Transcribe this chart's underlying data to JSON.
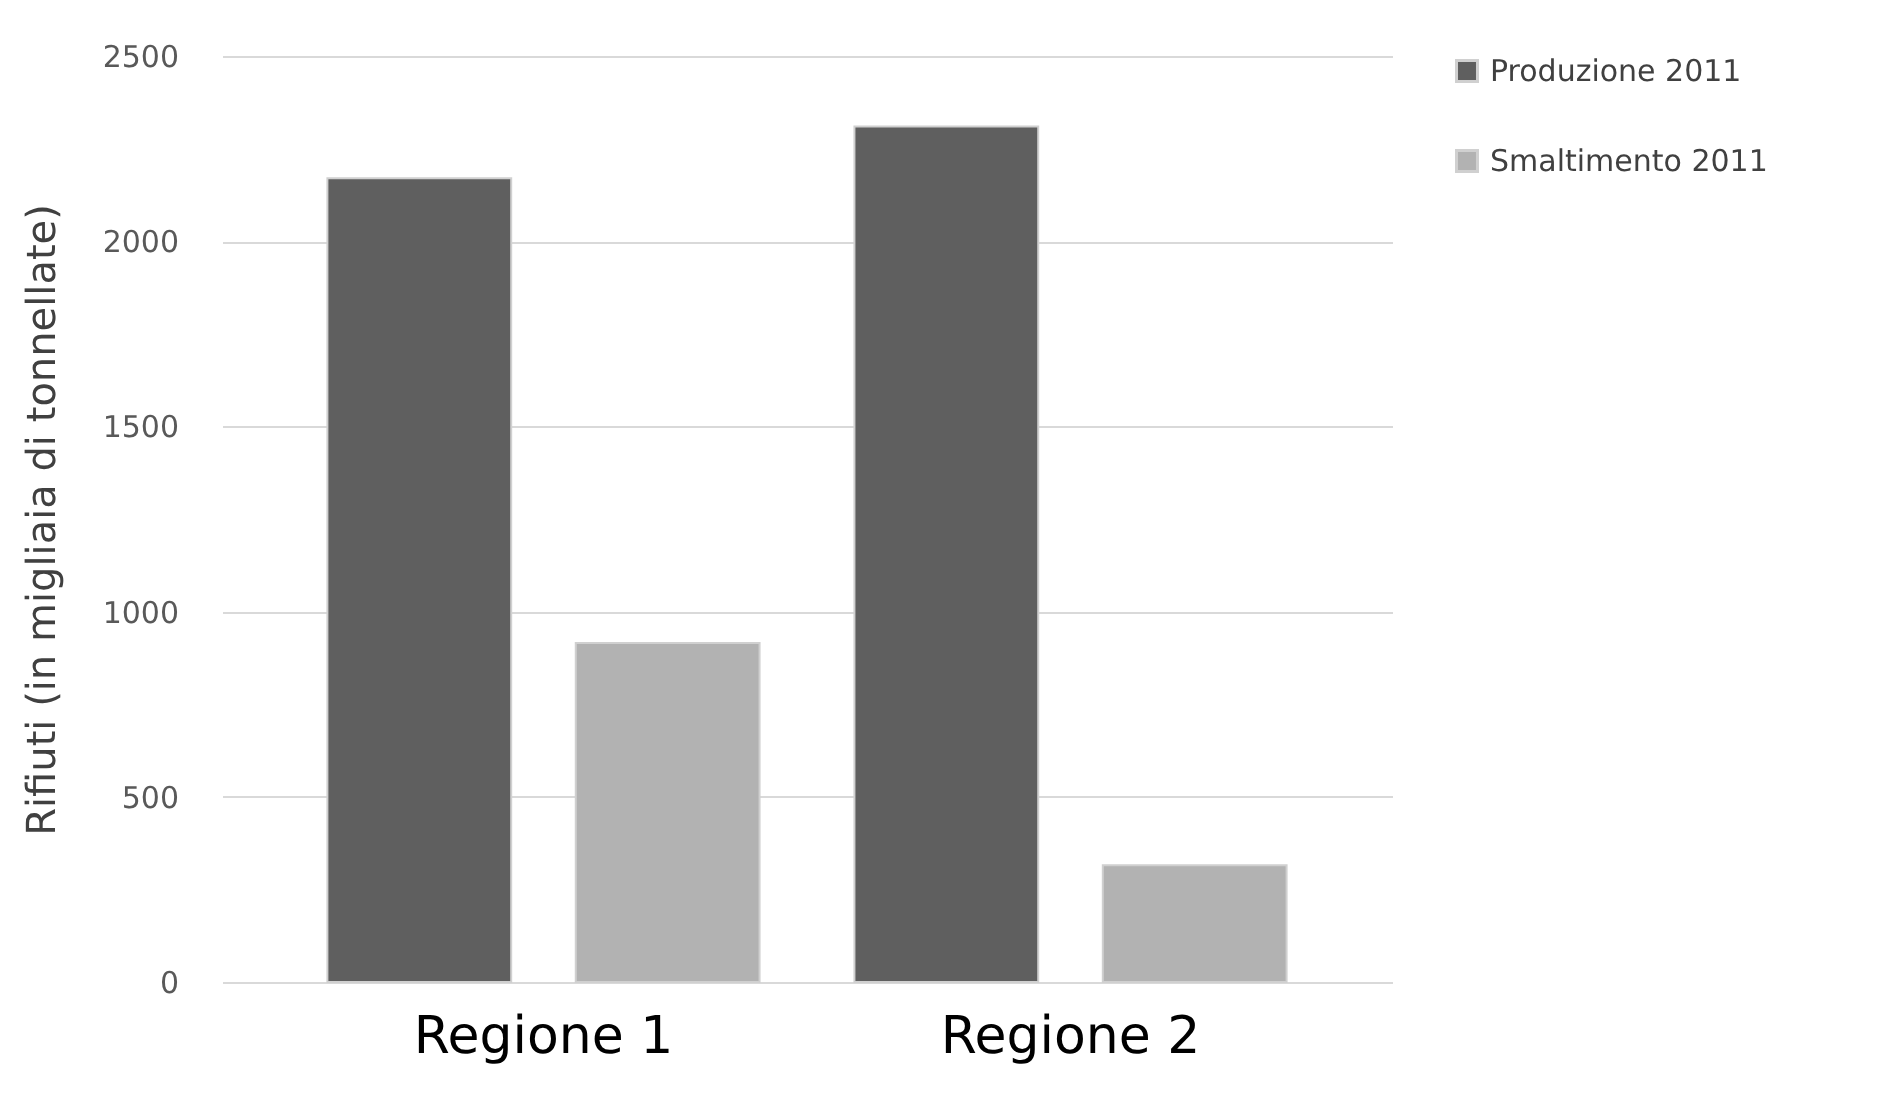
{
  "chart_data": {
    "type": "bar",
    "ylabel": "Rifiuti (in migliaia di tonnellate)",
    "categories": [
      "Regione 1",
      "Regione 2"
    ],
    "series": [
      {
        "name": "Produzione 2011",
        "color": "#5f5f5f",
        "values": [
          2170,
          2310
        ]
      },
      {
        "name": "Smaltimento 2011",
        "color": "#b2b2b2",
        "values": [
          915,
          315
        ]
      }
    ],
    "ylim": [
      0,
      2500
    ],
    "yticks": [
      0,
      500,
      1000,
      1500,
      2000,
      2500
    ],
    "grid": "y",
    "legend": "right"
  }
}
